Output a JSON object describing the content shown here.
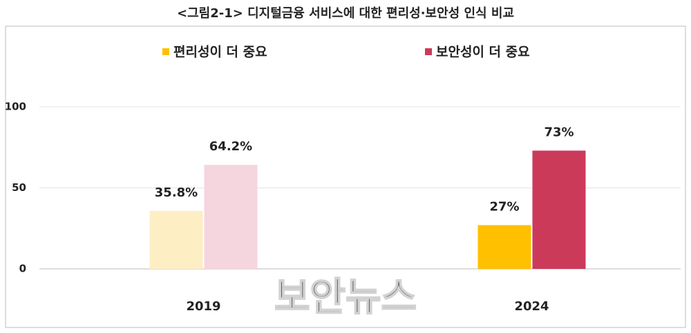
{
  "chart_data": {
    "type": "bar",
    "title": "<그림2-1> 디지털금융 서비스에 대한 편리성·보안성 인식 비교",
    "categories": [
      "2019",
      "2024"
    ],
    "series": [
      {
        "name": "편리성이 더 중요",
        "color": "#ffc000",
        "point_colors": [
          "#fdeec4",
          "#ffc000"
        ],
        "values": [
          35.8,
          27
        ],
        "value_labels": [
          "35.8%",
          "27%"
        ]
      },
      {
        "name": "보안성이 더 중요",
        "color": "#cc3a5a",
        "point_colors": [
          "#f5d5de",
          "#cc3a5a"
        ],
        "values": [
          64.2,
          73
        ],
        "value_labels": [
          "64.2%",
          "73%"
        ]
      }
    ],
    "ylim": [
      0,
      100
    ],
    "yticks": [
      0,
      50,
      100
    ],
    "grid": true,
    "watermark": "보안뉴스"
  }
}
